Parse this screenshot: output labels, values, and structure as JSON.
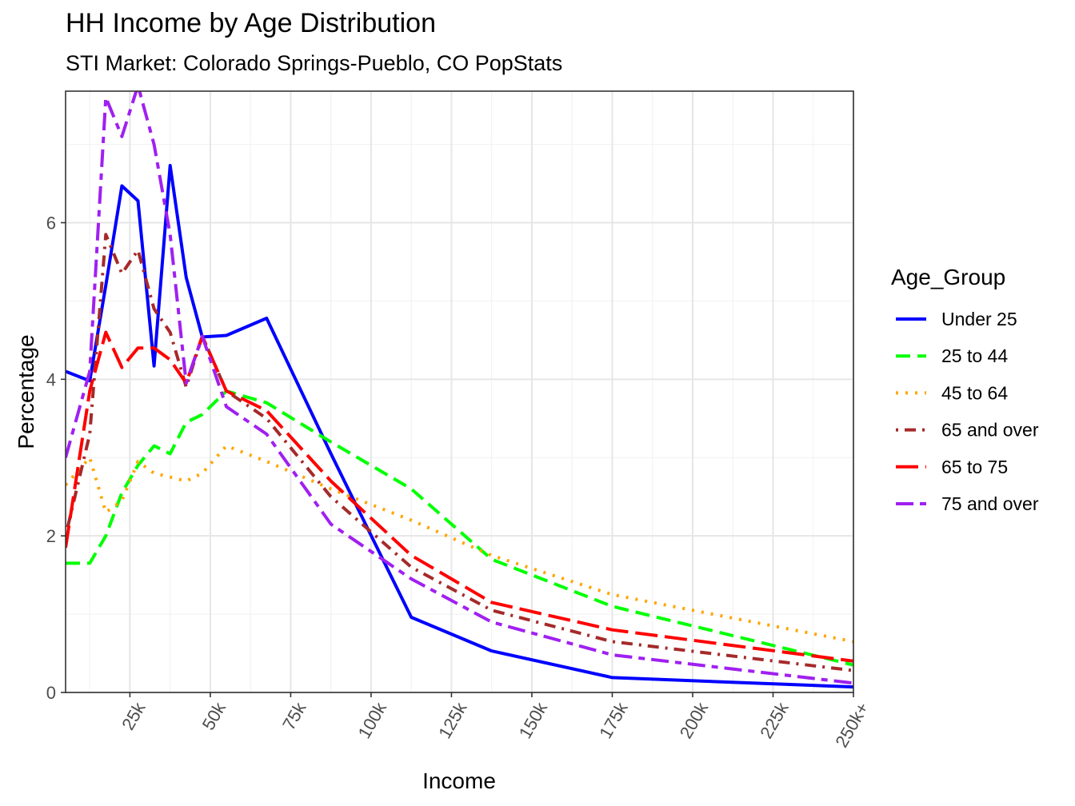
{
  "chart_data": {
    "type": "line",
    "title": "HH Income by Age Distribution",
    "subtitle": "STI Market: Colorado Springs-Pueblo, CO PopStats",
    "xlabel": "Income",
    "ylabel": "Percentage",
    "xlim": [
      5,
      250
    ],
    "ylim": [
      0,
      7.68
    ],
    "x_ticks": [
      {
        "value": 25,
        "label": "25k"
      },
      {
        "value": 50,
        "label": "50k"
      },
      {
        "value": 75,
        "label": "75k"
      },
      {
        "value": 100,
        "label": "100k"
      },
      {
        "value": 125,
        "label": "125k"
      },
      {
        "value": 150,
        "label": "150k"
      },
      {
        "value": 175,
        "label": "175k"
      },
      {
        "value": 200,
        "label": "200k"
      },
      {
        "value": 225,
        "label": "225k"
      },
      {
        "value": 250,
        "label": "250k+"
      }
    ],
    "y_ticks": [
      0,
      2,
      4,
      6
    ],
    "grid": true,
    "legend_title": "Age_Group",
    "legend_position": "right",
    "x": [
      5,
      12.5,
      17.5,
      22.5,
      27.5,
      32.5,
      37.5,
      42.5,
      47.5,
      55,
      67.5,
      87.5,
      112.5,
      137.5,
      175,
      250
    ],
    "series": [
      {
        "name": "Under 25",
        "color": "#0000FF",
        "dash": "solid",
        "values": [
          4.1,
          3.98,
          5.2,
          6.47,
          6.28,
          4.17,
          6.73,
          5.3,
          4.54,
          4.56,
          4.78,
          3.05,
          0.96,
          0.53,
          0.19,
          0.07
        ]
      },
      {
        "name": "25 to 44",
        "color": "#00FF00",
        "dash": "dashed",
        "values": [
          1.65,
          1.65,
          2.0,
          2.55,
          2.9,
          3.15,
          3.05,
          3.45,
          3.55,
          3.85,
          3.7,
          3.2,
          2.6,
          1.7,
          1.1,
          0.35
        ]
      },
      {
        "name": "45 to 64",
        "color": "#FFA500",
        "dash": "dotted",
        "values": [
          2.65,
          3.0,
          2.3,
          2.45,
          2.95,
          2.8,
          2.75,
          2.7,
          2.8,
          3.15,
          2.95,
          2.6,
          2.2,
          1.75,
          1.25,
          0.65
        ]
      },
      {
        "name": "65 and over",
        "color": "#A52A2A",
        "dash": "dotdash",
        "values": [
          2.0,
          3.3,
          5.85,
          5.35,
          5.65,
          4.9,
          4.6,
          3.9,
          4.55,
          3.85,
          3.5,
          2.5,
          1.6,
          1.05,
          0.65,
          0.28
        ]
      },
      {
        "name": "65 to 75",
        "color": "#FF0000",
        "dash": "longdash",
        "values": [
          1.85,
          3.85,
          4.6,
          4.15,
          4.4,
          4.4,
          4.25,
          3.95,
          4.55,
          3.85,
          3.6,
          2.7,
          1.75,
          1.15,
          0.8,
          0.4
        ]
      },
      {
        "name": "75 and over",
        "color": "#A020F0",
        "dash": "twodash",
        "values": [
          3.0,
          4.1,
          7.6,
          7.1,
          7.75,
          7.0,
          5.85,
          3.95,
          4.55,
          3.65,
          3.3,
          2.15,
          1.45,
          0.9,
          0.48,
          0.12
        ]
      }
    ]
  }
}
